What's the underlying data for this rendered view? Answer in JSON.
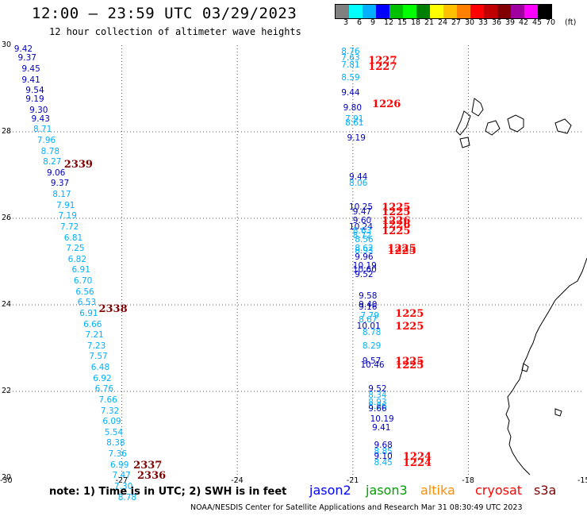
{
  "header": {
    "title": "12:00 – 23:59 UTC 03/29/2023",
    "subtitle": "12 hour collection of altimeter wave heights"
  },
  "legend": {
    "unit": "(ft)",
    "colors": [
      "#808080",
      "#00ffff",
      "#00b0ff",
      "#0000ff",
      "#00c000",
      "#00ff00",
      "#008000",
      "#ffff00",
      "#ffc000",
      "#ff8000",
      "#ff0000",
      "#c00000",
      "#800000",
      "#a000a0",
      "#ff00ff",
      "#000000"
    ],
    "labels": [
      "3",
      "6",
      "9",
      "12",
      "15",
      "18",
      "21",
      "24",
      "27",
      "30",
      "33",
      "36",
      "39",
      "42",
      "45",
      "70"
    ]
  },
  "axes": {
    "x_ticks": [
      "-30",
      "-27",
      "-24",
      "-21",
      "-18",
      "-15"
    ],
    "y_ticks": [
      "30",
      "28",
      "26",
      "24",
      "22",
      "20"
    ]
  },
  "tracks": [
    {
      "time": "2339",
      "lon": -28.5,
      "lat": 27.25
    },
    {
      "time": "2338",
      "lon": -27.6,
      "lat": 23.9
    },
    {
      "time": "2337",
      "lon": -26.7,
      "lat": 20.3
    },
    {
      "time": "2336",
      "lon": -26.6,
      "lat": 20.05
    },
    {
      "time": "1227",
      "lon": -20.6,
      "lat": 29.65
    },
    {
      "time": "1227",
      "lon": -20.6,
      "lat": 29.5
    },
    {
      "time": "1226",
      "lon": -20.5,
      "lat": 28.65
    },
    {
      "time": "1225",
      "lon": -20.25,
      "lat": 26.25
    },
    {
      "time": "1225",
      "lon": -20.25,
      "lat": 26.15
    },
    {
      "time": "1226",
      "lon": -20.25,
      "lat": 25.95
    },
    {
      "time": "1226",
      "lon": -20.25,
      "lat": 25.85
    },
    {
      "time": "1225",
      "lon": -20.25,
      "lat": 25.7
    },
    {
      "time": "1225",
      "lon": -20.1,
      "lat": 25.3
    },
    {
      "time": "1225",
      "lon": -20.1,
      "lat": 25.25
    },
    {
      "time": "1225",
      "lon": -19.9,
      "lat": 23.8
    },
    {
      "time": "1225",
      "lon": -19.9,
      "lat": 23.5
    },
    {
      "time": "1225",
      "lon": -19.9,
      "lat": 22.7
    },
    {
      "time": "1225",
      "lon": -19.9,
      "lat": 22.6
    },
    {
      "time": "1224",
      "lon": -19.7,
      "lat": 20.5
    },
    {
      "time": "1224",
      "lon": -19.7,
      "lat": 20.35
    }
  ],
  "observations": [
    {
      "v": "9.42",
      "lon": -29.8,
      "lat": 29.9,
      "c": "#0000c0"
    },
    {
      "v": "9.37",
      "lon": -29.7,
      "lat": 29.7,
      "c": "#0000c0"
    },
    {
      "v": "9.45",
      "lon": -29.6,
      "lat": 29.45,
      "c": "#0000c0"
    },
    {
      "v": "9.41",
      "lon": -29.6,
      "lat": 29.2,
      "c": "#0000c0"
    },
    {
      "v": "9.54",
      "lon": -29.5,
      "lat": 28.95,
      "c": "#0000c0"
    },
    {
      "v": "9.19",
      "lon": -29.5,
      "lat": 28.75,
      "c": "#0000c0"
    },
    {
      "v": "9.30",
      "lon": -29.4,
      "lat": 28.5,
      "c": "#0000c0"
    },
    {
      "v": "9.43",
      "lon": -29.35,
      "lat": 28.3,
      "c": "#0000c0"
    },
    {
      "v": "8.71",
      "lon": -29.3,
      "lat": 28.05,
      "c": "#00b0ff"
    },
    {
      "v": "7.96",
      "lon": -29.2,
      "lat": 27.8,
      "c": "#00b0ff"
    },
    {
      "v": "8.78",
      "lon": -29.1,
      "lat": 27.55,
      "c": "#00b0ff"
    },
    {
      "v": "8.27",
      "lon": -29.05,
      "lat": 27.3,
      "c": "#00b0ff"
    },
    {
      "v": "9.06",
      "lon": -28.95,
      "lat": 27.05,
      "c": "#0000c0"
    },
    {
      "v": "9.37",
      "lon": -28.85,
      "lat": 26.8,
      "c": "#0000c0"
    },
    {
      "v": "8.17",
      "lon": -28.8,
      "lat": 26.55,
      "c": "#00b0ff"
    },
    {
      "v": "7.91",
      "lon": -28.7,
      "lat": 26.3,
      "c": "#00b0ff"
    },
    {
      "v": "7.19",
      "lon": -28.65,
      "lat": 26.05,
      "c": "#00b0ff"
    },
    {
      "v": "7.72",
      "lon": -28.6,
      "lat": 25.8,
      "c": "#00b0ff"
    },
    {
      "v": "6.81",
      "lon": -28.5,
      "lat": 25.55,
      "c": "#00b0ff"
    },
    {
      "v": "7.25",
      "lon": -28.45,
      "lat": 25.3,
      "c": "#00b0ff"
    },
    {
      "v": "6.82",
      "lon": -28.4,
      "lat": 25.05,
      "c": "#00b0ff"
    },
    {
      "v": "6.91",
      "lon": -28.3,
      "lat": 24.8,
      "c": "#00b0ff"
    },
    {
      "v": "6.70",
      "lon": -28.25,
      "lat": 24.55,
      "c": "#00b0ff"
    },
    {
      "v": "6.56",
      "lon": -28.2,
      "lat": 24.3,
      "c": "#00b0ff"
    },
    {
      "v": "6.53",
      "lon": -28.15,
      "lat": 24.05,
      "c": "#00b0ff"
    },
    {
      "v": "6.91",
      "lon": -28.1,
      "lat": 23.8,
      "c": "#00b0ff"
    },
    {
      "v": "6.66",
      "lon": -28.0,
      "lat": 23.55,
      "c": "#00b0ff"
    },
    {
      "v": "7.21",
      "lon": -27.95,
      "lat": 23.3,
      "c": "#00b0ff"
    },
    {
      "v": "7.23",
      "lon": -27.9,
      "lat": 23.05,
      "c": "#00b0ff"
    },
    {
      "v": "7.57",
      "lon": -27.85,
      "lat": 22.8,
      "c": "#00b0ff"
    },
    {
      "v": "6.48",
      "lon": -27.8,
      "lat": 22.55,
      "c": "#00b0ff"
    },
    {
      "v": "6.92",
      "lon": -27.75,
      "lat": 22.3,
      "c": "#00b0ff"
    },
    {
      "v": "6.76",
      "lon": -27.7,
      "lat": 22.05,
      "c": "#00b0ff"
    },
    {
      "v": "7.66",
      "lon": -27.6,
      "lat": 21.8,
      "c": "#00b0ff"
    },
    {
      "v": "7.32",
      "lon": -27.55,
      "lat": 21.55,
      "c": "#00b0ff"
    },
    {
      "v": "6.09",
      "lon": -27.5,
      "lat": 21.3,
      "c": "#00b0ff"
    },
    {
      "v": "5.54",
      "lon": -27.45,
      "lat": 21.05,
      "c": "#00b0ff"
    },
    {
      "v": "8.38",
      "lon": -27.4,
      "lat": 20.8,
      "c": "#00b0ff"
    },
    {
      "v": "7.36",
      "lon": -27.35,
      "lat": 20.55,
      "c": "#00b0ff"
    },
    {
      "v": "6.99",
      "lon": -27.3,
      "lat": 20.3,
      "c": "#00b0ff"
    },
    {
      "v": "7.47",
      "lon": -27.25,
      "lat": 20.05,
      "c": "#00b0ff"
    },
    {
      "v": "7.30",
      "lon": -27.2,
      "lat": 19.8,
      "c": "#00b0ff"
    },
    {
      "v": "8.78",
      "lon": -27.1,
      "lat": 19.55,
      "c": "#00b0ff"
    },
    {
      "v": "8.76",
      "lon": -21.3,
      "lat": 29.85,
      "c": "#00b0ff"
    },
    {
      "v": "7.63",
      "lon": -21.3,
      "lat": 29.7,
      "c": "#00b0ff"
    },
    {
      "v": "7.81",
      "lon": -21.3,
      "lat": 29.55,
      "c": "#00b0ff"
    },
    {
      "v": "8.59",
      "lon": -21.3,
      "lat": 29.25,
      "c": "#00b0ff"
    },
    {
      "v": "9.44",
      "lon": -21.3,
      "lat": 28.9,
      "c": "#0000c0"
    },
    {
      "v": "9.80",
      "lon": -21.25,
      "lat": 28.55,
      "c": "#0000c0"
    },
    {
      "v": "7.91",
      "lon": -21.2,
      "lat": 28.3,
      "c": "#00b0ff"
    },
    {
      "v": "8.61",
      "lon": -21.2,
      "lat": 28.2,
      "c": "#00b0ff"
    },
    {
      "v": "9.19",
      "lon": -21.15,
      "lat": 27.85,
      "c": "#0000c0"
    },
    {
      "v": "9.44",
      "lon": -21.1,
      "lat": 26.95,
      "c": "#0000c0"
    },
    {
      "v": "8.06",
      "lon": -21.1,
      "lat": 26.8,
      "c": "#00b0ff"
    },
    {
      "v": "10.25",
      "lon": -21.1,
      "lat": 26.25,
      "c": "#0000c0"
    },
    {
      "v": "9.47",
      "lon": -21.0,
      "lat": 26.15,
      "c": "#0000c0"
    },
    {
      "v": "9.60",
      "lon": -21.0,
      "lat": 25.95,
      "c": "#0000c0"
    },
    {
      "v": "10.24",
      "lon": -21.1,
      "lat": 25.8,
      "c": "#0000c0"
    },
    {
      "v": "8.63",
      "lon": -21.0,
      "lat": 25.7,
      "c": "#00b0ff"
    },
    {
      "v": "8.72",
      "lon": -21.0,
      "lat": 25.6,
      "c": "#00b0ff"
    },
    {
      "v": "8.56",
      "lon": -20.95,
      "lat": 25.5,
      "c": "#00b0ff"
    },
    {
      "v": "8.62",
      "lon": -20.95,
      "lat": 25.3,
      "c": "#00b0ff"
    },
    {
      "v": "8.93",
      "lon": -20.95,
      "lat": 25.25,
      "c": "#00b0ff"
    },
    {
      "v": "9.96",
      "lon": -20.95,
      "lat": 25.1,
      "c": "#0000c0"
    },
    {
      "v": "10.19",
      "lon": -21.0,
      "lat": 24.9,
      "c": "#0000c0"
    },
    {
      "v": "10.60",
      "lon": -21.0,
      "lat": 24.8,
      "c": "#0000c0"
    },
    {
      "v": "9.52",
      "lon": -20.95,
      "lat": 24.7,
      "c": "#0000c0"
    },
    {
      "v": "9.58",
      "lon": -20.85,
      "lat": 24.2,
      "c": "#0000c0"
    },
    {
      "v": "9.40",
      "lon": -20.85,
      "lat": 24.0,
      "c": "#0000c0"
    },
    {
      "v": "9.16",
      "lon": -20.85,
      "lat": 23.95,
      "c": "#0000c0"
    },
    {
      "v": "7.79",
      "lon": -20.8,
      "lat": 23.75,
      "c": "#00b0ff"
    },
    {
      "v": "8.67",
      "lon": -20.85,
      "lat": 23.65,
      "c": "#00b0ff"
    },
    {
      "v": "10.01",
      "lon": -20.9,
      "lat": 23.5,
      "c": "#0000c0"
    },
    {
      "v": "8.78",
      "lon": -20.75,
      "lat": 23.35,
      "c": "#00b0ff"
    },
    {
      "v": "8.29",
      "lon": -20.75,
      "lat": 23.05,
      "c": "#00b0ff"
    },
    {
      "v": "9.57",
      "lon": -20.75,
      "lat": 22.7,
      "c": "#0000c0"
    },
    {
      "v": "10.46",
      "lon": -20.8,
      "lat": 22.6,
      "c": "#0000c0"
    },
    {
      "v": "9.52",
      "lon": -20.6,
      "lat": 22.05,
      "c": "#0000c0"
    },
    {
      "v": "8.34",
      "lon": -20.6,
      "lat": 21.9,
      "c": "#00b0ff"
    },
    {
      "v": "8.93",
      "lon": -20.6,
      "lat": 21.75,
      "c": "#00b0ff"
    },
    {
      "v": "8.96",
      "lon": -20.6,
      "lat": 21.65,
      "c": "#00b0ff"
    },
    {
      "v": "9.66",
      "lon": -20.6,
      "lat": 21.6,
      "c": "#0000c0"
    },
    {
      "v": "10.19",
      "lon": -20.55,
      "lat": 21.35,
      "c": "#0000c0"
    },
    {
      "v": "9.41",
      "lon": -20.5,
      "lat": 21.15,
      "c": "#0000c0"
    },
    {
      "v": "9.68",
      "lon": -20.45,
      "lat": 20.75,
      "c": "#0000c0"
    },
    {
      "v": "8.85",
      "lon": -20.45,
      "lat": 20.6,
      "c": "#00b0ff"
    },
    {
      "v": "9.10",
      "lon": -20.45,
      "lat": 20.5,
      "c": "#0000c0"
    },
    {
      "v": "8.45",
      "lon": -20.45,
      "lat": 20.35,
      "c": "#00b0ff"
    }
  ],
  "note": "note: 1) Time is in UTC; 2) SWH is in feet",
  "satellites": [
    {
      "name": "jason2",
      "color": "#0000ff"
    },
    {
      "name": "jason3",
      "color": "#00a000"
    },
    {
      "name": "altika",
      "color": "#ff8c00"
    },
    {
      "name": "cryosat",
      "color": "#ff0000"
    },
    {
      "name": "s3a",
      "color": "#800000"
    }
  ],
  "footer": "NOAA/NESDIS Center for Satellite Applications and Research    Mar 31 08:30:49 UTC 2023"
}
